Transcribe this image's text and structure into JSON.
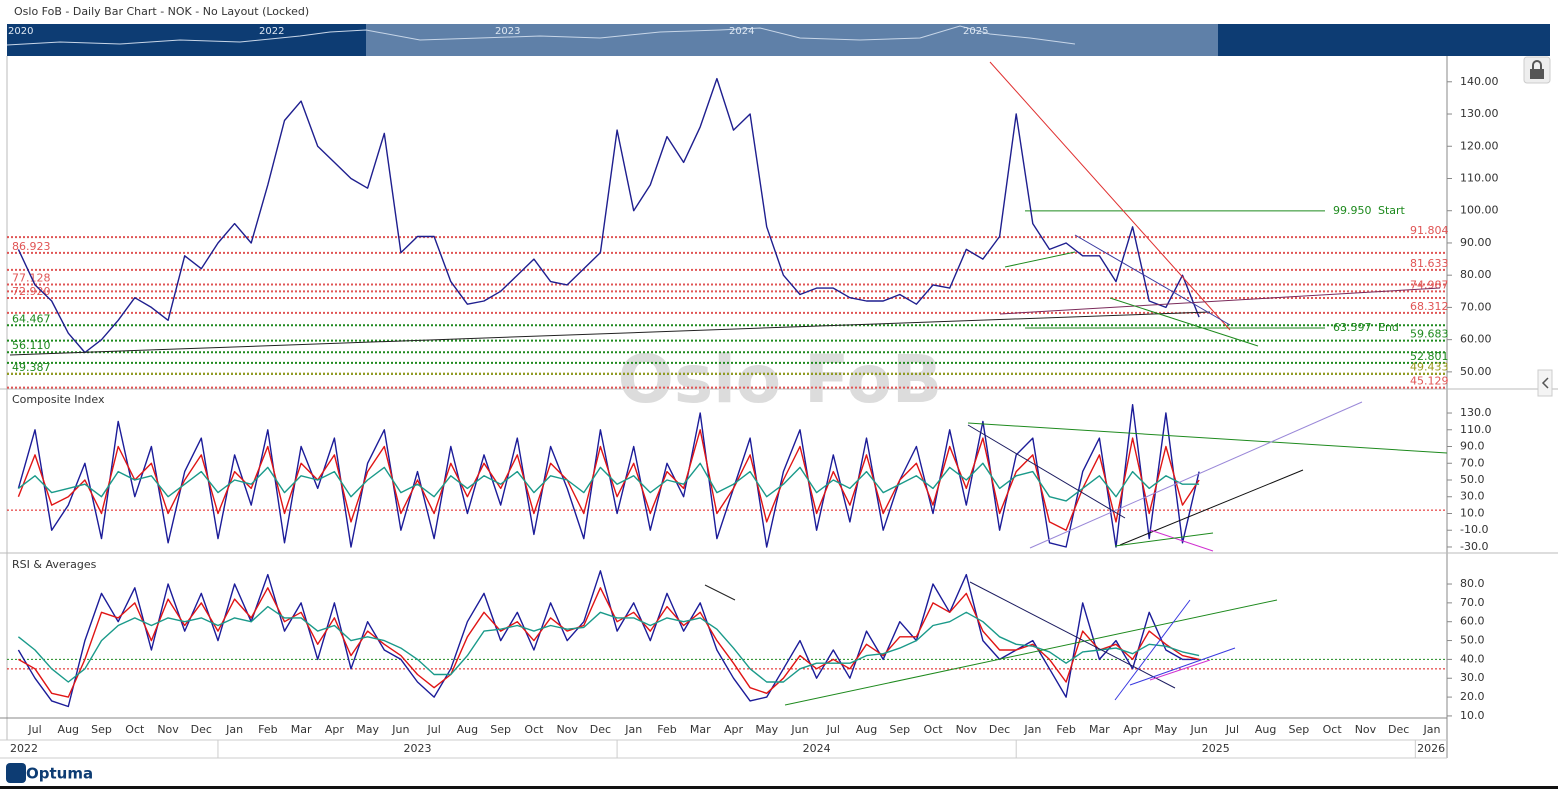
{
  "header": {
    "title": "Oslo FoB - Daily Bar Chart - NOK - No Layout (Locked)",
    "logo": "Optuma"
  },
  "navigator": {
    "years": [
      "2020",
      "2022",
      "2023",
      "2024",
      "2025"
    ]
  },
  "chart_data": [
    {
      "type": "line",
      "series": [
        {
          "name": "Oslo FoB",
          "color": "#1f1f8f",
          "values": [
            88,
            77,
            72,
            62,
            56,
            60,
            66,
            73,
            70,
            66,
            86,
            82,
            90,
            96,
            90,
            108,
            128,
            134,
            120,
            115,
            110,
            107,
            124,
            87,
            92,
            92,
            78,
            71,
            72,
            75,
            80,
            85,
            78,
            77,
            82,
            87,
            125,
            100,
            108,
            123,
            115,
            126,
            141,
            125,
            130,
            95,
            80,
            74,
            76,
            76,
            73,
            72,
            72,
            74,
            71,
            77,
            76,
            88,
            85,
            92,
            130,
            96,
            88,
            90,
            86,
            86,
            78,
            95,
            72,
            70,
            80,
            67,
            null,
            null,
            null,
            null,
            null,
            null,
            null,
            null,
            null,
            null,
            null,
            null,
            null,
            null
          ]
        }
      ],
      "ylim": [
        45,
        148
      ],
      "yticks": [
        {
          "value": 140,
          "label": "140.00"
        },
        {
          "value": 130,
          "label": "130.00"
        },
        {
          "value": 120,
          "label": "120.00"
        },
        {
          "value": 110,
          "label": "110.00"
        },
        {
          "value": 100,
          "label": "100.00"
        },
        {
          "value": 90,
          "label": "90.00"
        },
        {
          "value": 80,
          "label": "80.00"
        },
        {
          "value": 70,
          "label": "70.00"
        },
        {
          "value": 60,
          "label": "60.00"
        },
        {
          "value": 50,
          "label": "50.00"
        }
      ],
      "levels": [
        {
          "value": 91.804,
          "color": "#e05555",
          "side": "right"
        },
        {
          "value": 86.923,
          "color": "#e05555",
          "side": "left"
        },
        {
          "value": 81.633,
          "color": "#e05555",
          "side": "right"
        },
        {
          "value": 77.128,
          "color": "#e05555",
          "side": "left"
        },
        {
          "value": 74.987,
          "color": "#e05555",
          "side": "right"
        },
        {
          "value": 72.92,
          "label": "72.920",
          "color": "#e05555",
          "side": "left"
        },
        {
          "value": 68.312,
          "color": "#e05555",
          "side": "right"
        },
        {
          "value": 64.467,
          "color": "#1e8a1e",
          "side": "left"
        },
        {
          "value": 59.683,
          "color": "#1e8a1e",
          "side": "right"
        },
        {
          "value": 56.11,
          "label": "56.110",
          "color": "#1e8a1e",
          "side": "left"
        },
        {
          "value": 52.801,
          "color": "#1e8a1e",
          "side": "right"
        },
        {
          "value": 49.387,
          "color": "#1e8a1e",
          "side": "left"
        },
        {
          "value": 49.433,
          "color": "#9a9a1e",
          "side": "right"
        },
        {
          "value": 45.129,
          "color": "#e05555",
          "side": "right"
        }
      ],
      "annotations": [
        {
          "value": 99.95,
          "label": "99.950",
          "text": "Start",
          "color": "#1e8a1e"
        },
        {
          "value": 63.597,
          "text": "End",
          "color": "#1e8a1e"
        }
      ]
    },
    {
      "type": "line",
      "title": "Composite Index",
      "series": [
        {
          "color": "#1c1c99",
          "values": [
            40,
            110,
            -10,
            20,
            70,
            -20,
            120,
            30,
            90,
            -25,
            60,
            100,
            -20,
            80,
            20,
            110,
            -25,
            90,
            40,
            100,
            -30,
            70,
            110,
            -10,
            60,
            -20,
            90,
            10,
            80,
            20,
            100,
            -15,
            90,
            40,
            -20,
            110,
            10,
            90,
            -10,
            70,
            30,
            130,
            -20,
            40,
            100,
            -30,
            60,
            110,
            -10,
            80,
            0,
            100,
            -10,
            50,
            90,
            10,
            110,
            20,
            120,
            -10,
            80,
            100,
            -25,
            -30,
            60,
            100,
            -30,
            140,
            -20,
            130,
            -25,
            60,
            null,
            null,
            null,
            null,
            null,
            null,
            null,
            null,
            null,
            null,
            null,
            null,
            null,
            null
          ]
        },
        {
          "color": "#e01515",
          "values": [
            30,
            80,
            20,
            30,
            50,
            10,
            90,
            50,
            70,
            10,
            50,
            80,
            10,
            60,
            40,
            90,
            10,
            70,
            50,
            80,
            0,
            60,
            90,
            10,
            50,
            10,
            70,
            30,
            70,
            40,
            80,
            10,
            70,
            50,
            10,
            90,
            30,
            70,
            10,
            60,
            40,
            110,
            10,
            40,
            80,
            0,
            50,
            90,
            10,
            60,
            20,
            80,
            10,
            50,
            70,
            20,
            90,
            40,
            100,
            10,
            60,
            80,
            0,
            -10,
            40,
            80,
            0,
            100,
            10,
            90,
            20,
            50,
            null,
            null,
            null,
            null,
            null,
            null,
            null,
            null,
            null,
            null,
            null,
            null,
            null,
            null
          ]
        },
        {
          "color": "#1a9a8a",
          "values": [
            40,
            55,
            35,
            40,
            45,
            30,
            60,
            50,
            55,
            30,
            45,
            60,
            35,
            50,
            45,
            65,
            35,
            55,
            50,
            60,
            30,
            50,
            65,
            35,
            45,
            30,
            55,
            40,
            55,
            45,
            60,
            35,
            55,
            50,
            35,
            65,
            45,
            55,
            35,
            50,
            45,
            70,
            35,
            45,
            60,
            30,
            45,
            65,
            35,
            50,
            40,
            60,
            35,
            45,
            55,
            40,
            65,
            50,
            70,
            40,
            55,
            60,
            30,
            25,
            40,
            55,
            30,
            60,
            40,
            55,
            45,
            45,
            null,
            null,
            null,
            null,
            null,
            null,
            null,
            null,
            null,
            null,
            null,
            null,
            null,
            null
          ]
        }
      ],
      "ylim": [
        -36,
        157.5
      ],
      "yticks": [
        {
          "value": 130,
          "label": "130.0"
        },
        {
          "value": 110,
          "label": "110.0"
        },
        {
          "value": 90,
          "label": "90.0"
        },
        {
          "value": 70,
          "label": "70.0"
        },
        {
          "value": 50,
          "label": "50.0"
        },
        {
          "value": 30,
          "label": "30.0"
        },
        {
          "value": 10,
          "label": "10.0"
        },
        {
          "value": -10,
          "label": "-10.0"
        },
        {
          "value": -30,
          "label": "-30.0"
        }
      ],
      "ref_lines": [
        {
          "value": 14,
          "color": "#e01515"
        }
      ]
    },
    {
      "type": "line",
      "title": "RSI & Averages",
      "categories": [
        null,
        "Jul",
        null,
        "Aug",
        null,
        "Sep",
        null,
        "Oct",
        null,
        "Nov",
        null,
        "Dec",
        null,
        "Jan",
        null,
        "Feb",
        null,
        "Mar",
        null,
        "Apr",
        null,
        "May",
        null,
        "Jun",
        null,
        "Jul",
        null,
        "Aug",
        null,
        "Sep",
        null,
        "Oct",
        null,
        "Nov",
        null,
        "Dec",
        null,
        "Jan",
        null,
        "Feb",
        null,
        "Mar",
        null,
        "Apr",
        null,
        "May",
        null,
        "Jun",
        null,
        "Jul",
        null,
        "Aug",
        null,
        "Sep",
        null,
        "Oct",
        null,
        "Nov",
        null,
        "Dec",
        null,
        "Jan",
        null,
        "Feb",
        null,
        "Mar",
        null,
        "Apr",
        null,
        "May",
        null,
        "Jun",
        null,
        "Jul",
        null,
        "Aug",
        null,
        "Sep",
        null,
        "Oct",
        null,
        "Nov",
        null,
        "Dec",
        null,
        "Jan"
      ],
      "years": [
        "2022",
        "2023",
        "2024",
        "2025",
        "2026"
      ],
      "series": [
        {
          "color": "#1c1c99",
          "values": [
            45,
            30,
            18,
            15,
            50,
            75,
            60,
            78,
            45,
            80,
            55,
            75,
            50,
            80,
            60,
            85,
            55,
            70,
            40,
            70,
            35,
            60,
            45,
            40,
            28,
            20,
            35,
            60,
            75,
            50,
            65,
            45,
            70,
            50,
            60,
            87,
            55,
            70,
            50,
            75,
            55,
            70,
            45,
            30,
            18,
            20,
            35,
            50,
            30,
            45,
            30,
            55,
            40,
            60,
            50,
            80,
            65,
            85,
            50,
            40,
            45,
            50,
            35,
            20,
            70,
            40,
            50,
            35,
            65,
            45,
            40,
            40,
            null,
            null,
            null,
            null,
            null,
            null,
            null,
            null,
            null,
            null,
            null,
            null,
            null,
            null
          ]
        },
        {
          "color": "#e01515",
          "values": [
            40,
            35,
            22,
            20,
            40,
            65,
            62,
            70,
            50,
            72,
            58,
            70,
            55,
            72,
            62,
            78,
            60,
            65,
            48,
            62,
            42,
            55,
            48,
            42,
            32,
            25,
            32,
            52,
            65,
            55,
            60,
            50,
            62,
            55,
            58,
            78,
            60,
            65,
            55,
            68,
            58,
            65,
            50,
            38,
            25,
            22,
            30,
            42,
            35,
            40,
            35,
            48,
            42,
            52,
            52,
            70,
            65,
            75,
            55,
            45,
            45,
            48,
            40,
            28,
            55,
            45,
            48,
            40,
            55,
            48,
            42,
            40,
            null,
            null,
            null,
            null,
            null,
            null,
            null,
            null,
            null,
            null,
            null,
            null,
            null,
            null
          ]
        },
        {
          "color": "#1a9a8a",
          "values": [
            52,
            45,
            35,
            28,
            35,
            50,
            58,
            62,
            58,
            62,
            60,
            62,
            58,
            62,
            60,
            68,
            62,
            62,
            55,
            58,
            50,
            52,
            50,
            46,
            40,
            32,
            32,
            42,
            55,
            56,
            58,
            55,
            58,
            56,
            57,
            65,
            62,
            62,
            58,
            62,
            60,
            62,
            56,
            46,
            35,
            28,
            28,
            35,
            38,
            38,
            38,
            42,
            43,
            46,
            50,
            58,
            60,
            65,
            60,
            52,
            48,
            47,
            44,
            38,
            44,
            45,
            46,
            43,
            48,
            47,
            44,
            42,
            null,
            null,
            null,
            null,
            null,
            null,
            null,
            null,
            null,
            null,
            null,
            null,
            null,
            null
          ]
        }
      ],
      "ylim": [
        8.9,
        95.4
      ],
      "yticks": [
        {
          "value": 80,
          "label": "80.0"
        },
        {
          "value": 70,
          "label": "70.0"
        },
        {
          "value": 60,
          "label": "60.0"
        },
        {
          "value": 50,
          "label": "50.0"
        },
        {
          "value": 40,
          "label": "40.0"
        },
        {
          "value": 30,
          "label": "30.0"
        },
        {
          "value": 20,
          "label": "20.0"
        },
        {
          "value": 10,
          "label": "10.0"
        }
      ],
      "ref_lines": [
        {
          "value": 40,
          "color": "#1e8a1e"
        },
        {
          "value": 35,
          "color": "#e01515"
        }
      ]
    }
  ]
}
